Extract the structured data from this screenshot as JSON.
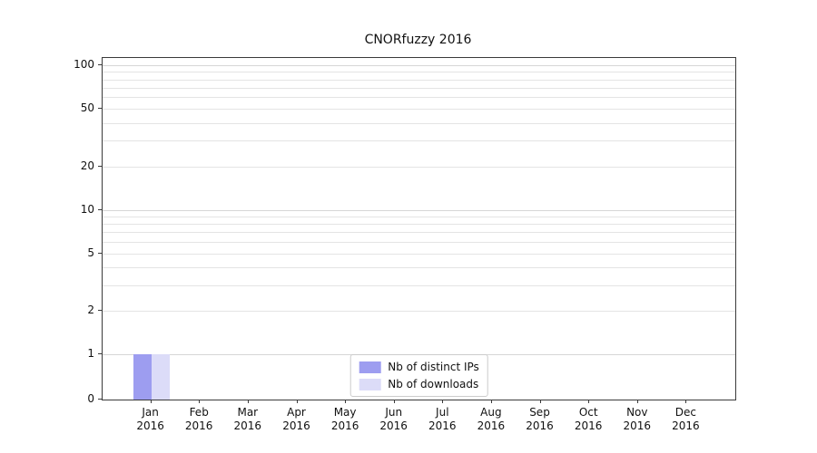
{
  "chart_data": {
    "type": "bar",
    "title": "CNORfuzzy 2016",
    "categories": [
      "Jan",
      "Feb",
      "Mar",
      "Apr",
      "May",
      "Jun",
      "Jul",
      "Aug",
      "Sep",
      "Oct",
      "Nov",
      "Dec"
    ],
    "category_year": "2016",
    "series": [
      {
        "name": "Nb of distinct IPs",
        "color": "#9d9df0",
        "values": [
          1,
          0,
          0,
          0,
          0,
          0,
          0,
          0,
          0,
          0,
          0,
          0
        ]
      },
      {
        "name": "Nb of downloads",
        "color": "#dcdcf8",
        "values": [
          1,
          0,
          0,
          0,
          0,
          0,
          0,
          0,
          0,
          0,
          0,
          0
        ]
      }
    ],
    "yscale": "symlog",
    "yticks": [
      0,
      1,
      2,
      5,
      10,
      20,
      50,
      100
    ],
    "ylim": [
      0,
      112
    ],
    "grid": true,
    "legend_position": "lower center",
    "colors": {
      "grid_minor": "#e4e4e4",
      "grid_major": "#d6d6d6",
      "spine": "#3a3a3a",
      "text": "#111111",
      "legend_border": "#cccccc"
    }
  }
}
